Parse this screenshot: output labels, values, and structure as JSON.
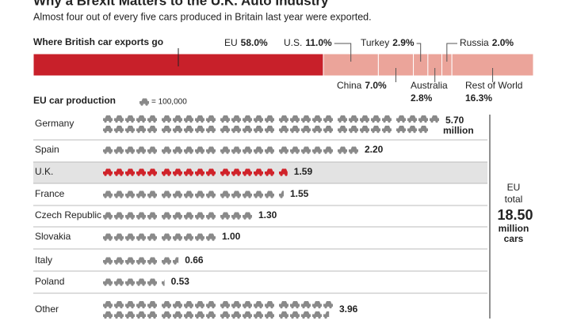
{
  "header": {
    "title": "Why a Brexit Matters to the U.K. Auto Industry",
    "subtitle": "Almost four out of every five cars produced in Britain last year were exported."
  },
  "chart_data": [
    {
      "type": "stacked-bar",
      "title": "Where British car exports go",
      "series": [
        {
          "name": "EU",
          "values": [
            58.0
          ],
          "value_labels": [
            "58.0%"
          ],
          "color": "#c8202a"
        },
        {
          "name": "U.S.",
          "values": [
            11.0
          ],
          "value_labels": [
            "11.0%"
          ],
          "color": "#eba49a"
        },
        {
          "name": "China",
          "values": [
            7.0
          ],
          "value_labels": [
            "7.0%"
          ],
          "color": "#eba49a"
        },
        {
          "name": "Turkey",
          "values": [
            2.9
          ],
          "value_labels": [
            "2.9%"
          ],
          "color": "#eba49a"
        },
        {
          "name": "Australia",
          "values": [
            2.8
          ],
          "value_labels": [
            "2.8%"
          ],
          "color": "#eba49a"
        },
        {
          "name": "Russia",
          "values": [
            2.0
          ],
          "value_labels": [
            "2.0%"
          ],
          "color": "#eba49a"
        },
        {
          "name": "Rest of World",
          "values": [
            16.3
          ],
          "value_labels": [
            "16.3%"
          ],
          "color": "#eba49a"
        }
      ],
      "xlim": [
        0,
        100
      ]
    },
    {
      "type": "pictogram",
      "title": "EU car production",
      "icon_value": 0.1,
      "icon_label": "= 100,000",
      "categories": [
        "Germany",
        "Spain",
        "U.K.",
        "France",
        "Czech Republic",
        "Slovakia",
        "Italy",
        "Poland",
        "Other"
      ],
      "values": [
        5.7,
        2.2,
        1.59,
        1.55,
        1.3,
        1.0,
        0.66,
        0.53,
        3.96
      ],
      "value_labels": [
        "5.70",
        "2.20",
        "1.59",
        "1.55",
        "1.30",
        "1.00",
        "0.66",
        "0.53",
        "3.96"
      ],
      "first_unit_label": "million",
      "color": "#8a8a8a",
      "highlight": "U.K.",
      "highlight_color": "#d0232a",
      "total_caption": [
        "EU",
        "total"
      ],
      "total": 18.5,
      "total_label": "18.50",
      "total_unit": [
        "million",
        "cars"
      ]
    }
  ]
}
